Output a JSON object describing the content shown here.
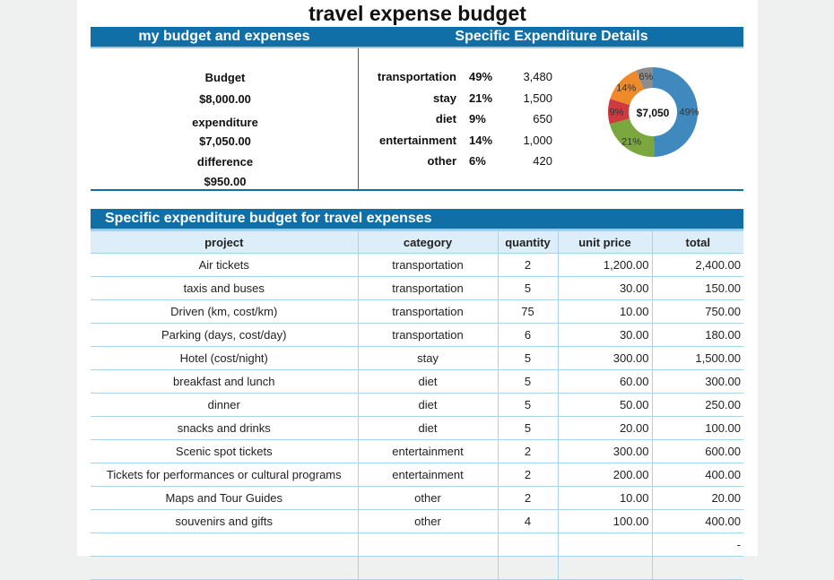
{
  "title": "travel expense budget",
  "top_headers": {
    "left": "my budget and expenses",
    "right": "Specific Expenditure Details"
  },
  "summary": {
    "budget_label": "Budget",
    "budget": "$8,000.00",
    "expenditure_label": "expenditure",
    "expenditure": "$7,050.00",
    "difference_label": "difference",
    "difference": "$950.00"
  },
  "details": [
    {
      "category": "transportation",
      "percent": "49%",
      "amount": "3,480"
    },
    {
      "category": "stay",
      "percent": "21%",
      "amount": "1,500"
    },
    {
      "category": "diet",
      "percent": "9%",
      "amount": "650"
    },
    {
      "category": "entertainment",
      "percent": "14%",
      "amount": "1,000"
    },
    {
      "category": "other",
      "percent": "6%",
      "amount": "420"
    }
  ],
  "chart_data": {
    "type": "pie",
    "donut": true,
    "center_label": "$7,050",
    "categories": [
      "transportation",
      "stay",
      "diet",
      "entertainment",
      "other"
    ],
    "values": [
      49,
      21,
      9,
      14,
      6
    ],
    "labels": [
      "49%",
      "21%",
      "9%",
      "14%",
      "6%"
    ],
    "colors": [
      "#3f89bf",
      "#7aa83e",
      "#cf3a3f",
      "#ee8a2a",
      "#8c8c8c"
    ]
  },
  "section_title": "Specific expenditure budget for travel expenses",
  "table": {
    "headers": [
      "project",
      "category",
      "quantity",
      "unit price",
      "total"
    ],
    "rows": [
      [
        "Air tickets",
        "transportation",
        "2",
        "1,200.00",
        "2,400.00"
      ],
      [
        "taxis and buses",
        "transportation",
        "5",
        "30.00",
        "150.00"
      ],
      [
        "Driven (km, cost/km)",
        "transportation",
        "75",
        "10.00",
        "750.00"
      ],
      [
        "Parking (days, cost/day)",
        "transportation",
        "6",
        "30.00",
        "180.00"
      ],
      [
        "Hotel (cost/night)",
        "stay",
        "5",
        "300.00",
        "1,500.00"
      ],
      [
        "breakfast and lunch",
        "diet",
        "5",
        "60.00",
        "300.00"
      ],
      [
        "dinner",
        "diet",
        "5",
        "50.00",
        "250.00"
      ],
      [
        "snacks and drinks",
        "diet",
        "5",
        "20.00",
        "100.00"
      ],
      [
        "Scenic spot tickets",
        "entertainment",
        "2",
        "300.00",
        "600.00"
      ],
      [
        "Tickets for performances or cultural programs",
        "entertainment",
        "2",
        "200.00",
        "400.00"
      ],
      [
        "Maps and Tour Guides",
        "other",
        "2",
        "10.00",
        "20.00"
      ],
      [
        "souvenirs and gifts",
        "other",
        "4",
        "100.00",
        "400.00"
      ],
      [
        "",
        "",
        "",
        "",
        "-"
      ],
      [
        "",
        "",
        "",
        "",
        ""
      ]
    ]
  }
}
